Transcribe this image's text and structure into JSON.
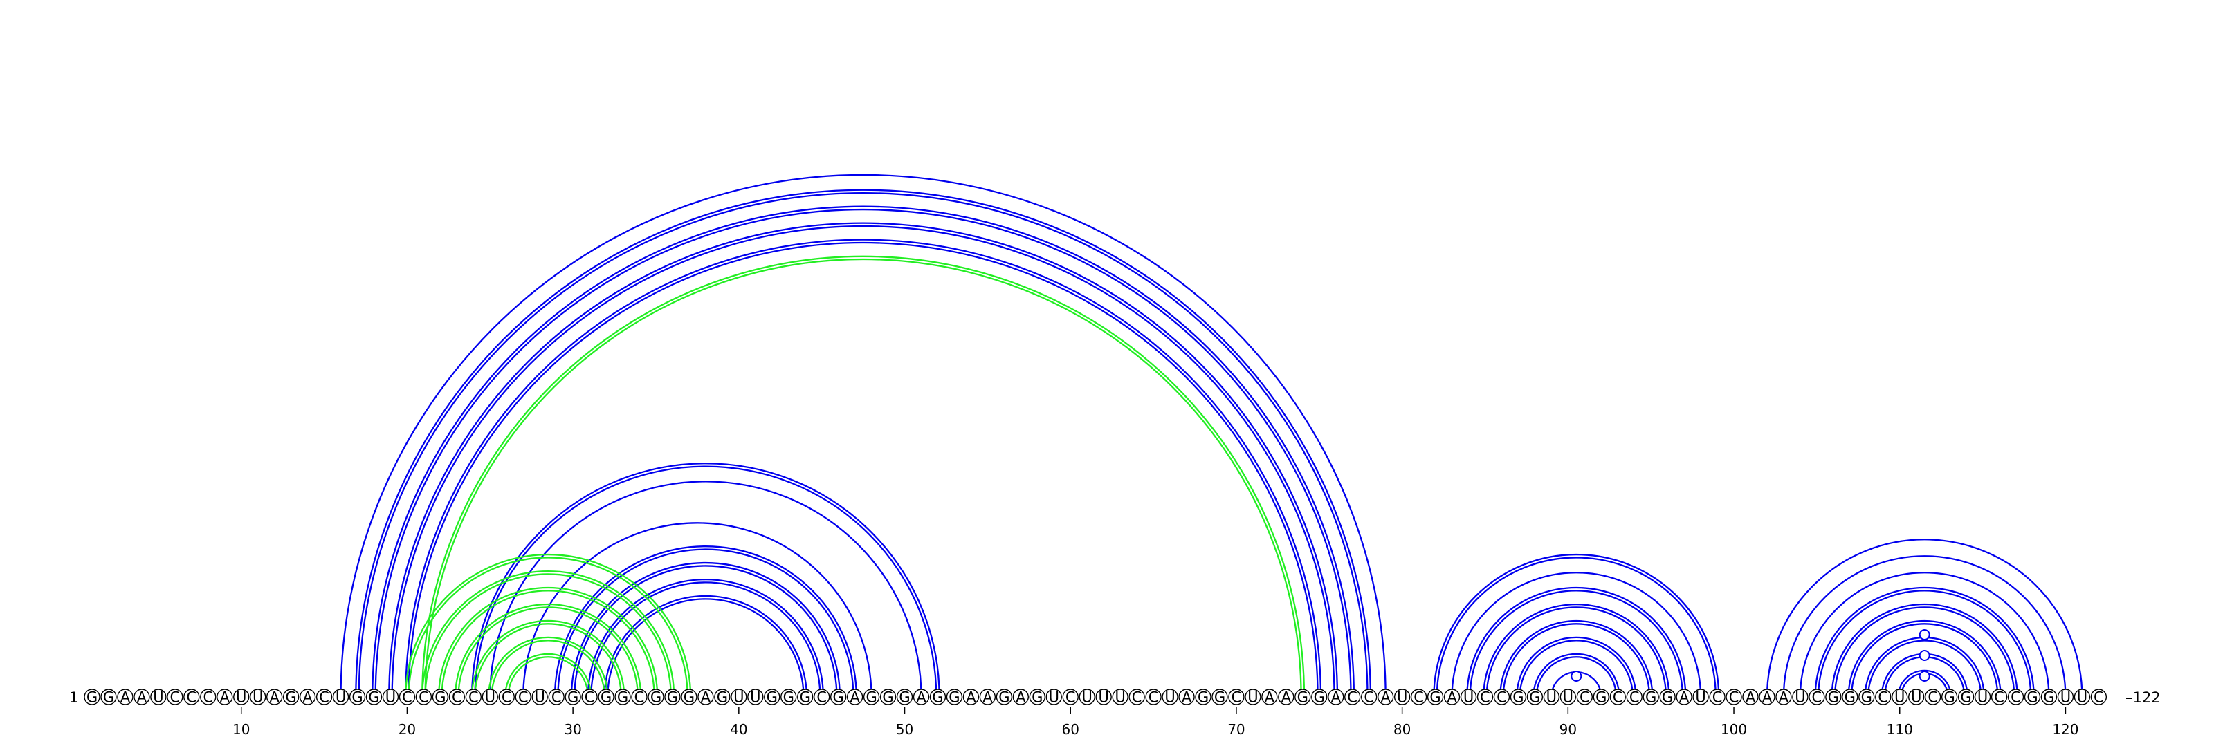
{
  "diagram": {
    "sequence": "GGAAUCCCAUUAGACUGGUCCGCCUCCUCGCGGCGGGAGUUGGGCGAGGGAGGAAGAGUCUUUCCUAGGCUAAGGACCAUCGAUCCGGUUCGCCGGAUCCAAAUCGGGCUUCGGUCCGGUUC",
    "start_label": "1 –",
    "end_label": "–122",
    "ticks": [
      10,
      20,
      30,
      40,
      50,
      60,
      70,
      80,
      90,
      100,
      110,
      120
    ],
    "colors": {
      "blue": "#0000ee",
      "green": "#22ee22",
      "circle_stroke": "#000000",
      "circle_fill": "#ffffff"
    },
    "arcs": [
      {
        "i": 16,
        "j": 79,
        "color": "blue",
        "double": false
      },
      {
        "i": 17,
        "j": 78,
        "color": "blue",
        "double": true
      },
      {
        "i": 18,
        "j": 77,
        "color": "blue",
        "double": true
      },
      {
        "i": 19,
        "j": 76,
        "color": "blue",
        "double": true
      },
      {
        "i": 20,
        "j": 75,
        "color": "blue",
        "double": true
      },
      {
        "i": 21,
        "j": 74,
        "color": "green",
        "double": true
      },
      {
        "i": 24,
        "j": 52,
        "color": "blue",
        "double": true
      },
      {
        "i": 25,
        "j": 51,
        "color": "blue",
        "double": false
      },
      {
        "i": 27,
        "j": 48,
        "color": "blue",
        "double": false
      },
      {
        "i": 29,
        "j": 47,
        "color": "blue",
        "double": true
      },
      {
        "i": 30,
        "j": 46,
        "color": "blue",
        "double": true
      },
      {
        "i": 31,
        "j": 45,
        "color": "blue",
        "double": true
      },
      {
        "i": 32,
        "j": 44,
        "color": "blue",
        "double": true
      },
      {
        "i": 20,
        "j": 37,
        "color": "green",
        "double": true
      },
      {
        "i": 21,
        "j": 36,
        "color": "green",
        "double": true
      },
      {
        "i": 22,
        "j": 35,
        "color": "green",
        "double": true
      },
      {
        "i": 23,
        "j": 34,
        "color": "green",
        "double": true
      },
      {
        "i": 24,
        "j": 33,
        "color": "green",
        "double": true
      },
      {
        "i": 25,
        "j": 32,
        "color": "green",
        "double": true
      },
      {
        "i": 26,
        "j": 31,
        "color": "green",
        "double": true
      },
      {
        "i": 82,
        "j": 99,
        "color": "blue",
        "double": true
      },
      {
        "i": 83,
        "j": 98,
        "color": "blue",
        "double": false
      },
      {
        "i": 84,
        "j": 97,
        "color": "blue",
        "double": true
      },
      {
        "i": 85,
        "j": 96,
        "color": "blue",
        "double": true
      },
      {
        "i": 86,
        "j": 95,
        "color": "blue",
        "double": true
      },
      {
        "i": 87,
        "j": 94,
        "color": "blue",
        "double": true
      },
      {
        "i": 88,
        "j": 93,
        "color": "blue",
        "double": true
      },
      {
        "i": 89,
        "j": 92,
        "color": "blue",
        "double": false
      },
      {
        "i": 102,
        "j": 121,
        "color": "blue",
        "double": false
      },
      {
        "i": 103,
        "j": 120,
        "color": "blue",
        "double": false
      },
      {
        "i": 104,
        "j": 119,
        "color": "blue",
        "double": false
      },
      {
        "i": 105,
        "j": 118,
        "color": "blue",
        "double": true
      },
      {
        "i": 106,
        "j": 117,
        "color": "blue",
        "double": true
      },
      {
        "i": 107,
        "j": 116,
        "color": "blue",
        "double": true
      },
      {
        "i": 108,
        "j": 115,
        "color": "blue",
        "double": true
      },
      {
        "i": 109,
        "j": 114,
        "color": "blue",
        "double": true
      },
      {
        "i": 110,
        "j": 113,
        "color": "blue",
        "double": true
      }
    ],
    "loop_circles": [
      {
        "pos": 90.5,
        "level": 1
      },
      {
        "pos": 111.5,
        "level": 1
      },
      {
        "pos": 111.5,
        "level": 2
      },
      {
        "pos": 111.5,
        "level": 3
      }
    ]
  }
}
